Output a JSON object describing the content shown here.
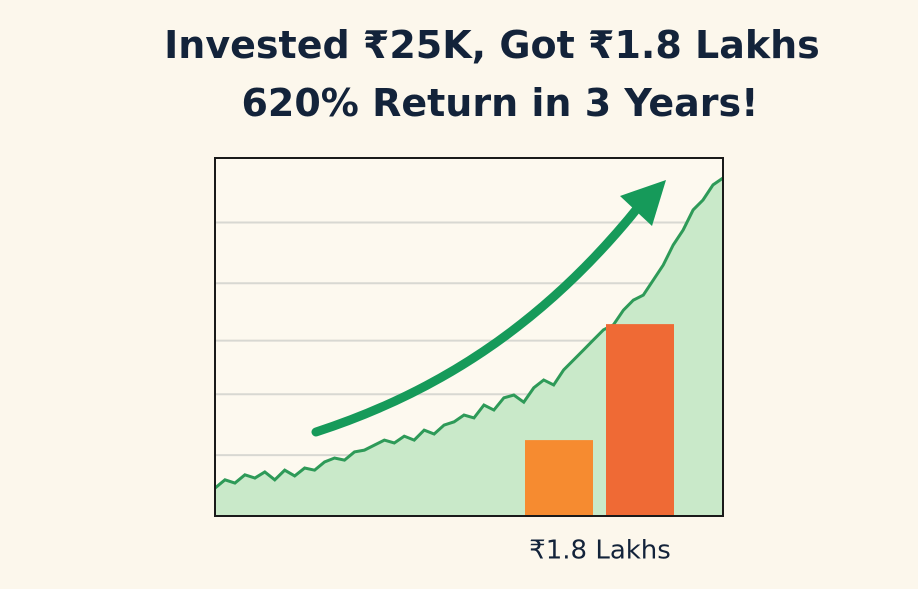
{
  "chart_data": [
    {
      "type": "area",
      "title": "Invested ₹25K, Got ₹1.8 Lakhs",
      "subtitle": "620% Return in 3 Years!",
      "values": [
        7.8,
        10.1,
        9.2,
        11.5,
        10.6,
        12.3,
        10.1,
        12.8,
        11.2,
        13.4,
        12.8,
        15.1,
        16.2,
        15.6,
        17.9,
        18.4,
        19.8,
        21.2,
        20.4,
        22.3,
        21.2,
        24.0,
        22.9,
        25.4,
        26.3,
        28.2,
        27.4,
        31.0,
        29.6,
        33.0,
        33.8,
        31.8,
        35.8,
        38.0,
        36.6,
        40.8,
        43.6,
        46.4,
        49.2,
        52.0,
        53.4,
        57.5,
        60.3,
        61.7,
        65.9,
        70.1,
        75.7,
        79.9,
        85.5,
        88.3,
        92.5,
        94.4
      ],
      "color": "#2e9a58",
      "fill": "#c9e9c9",
      "ylim": [
        0,
        100
      ],
      "yticks": [
        17,
        34,
        49,
        65,
        82
      ],
      "grid": true
    },
    {
      "type": "bar",
      "values": [
        21.2,
        53.6
      ],
      "colors": [
        "#f68b30",
        "#ef6a35"
      ],
      "annotation": "₹1.8 Lakhs",
      "ylim": [
        0,
        100
      ]
    }
  ]
}
